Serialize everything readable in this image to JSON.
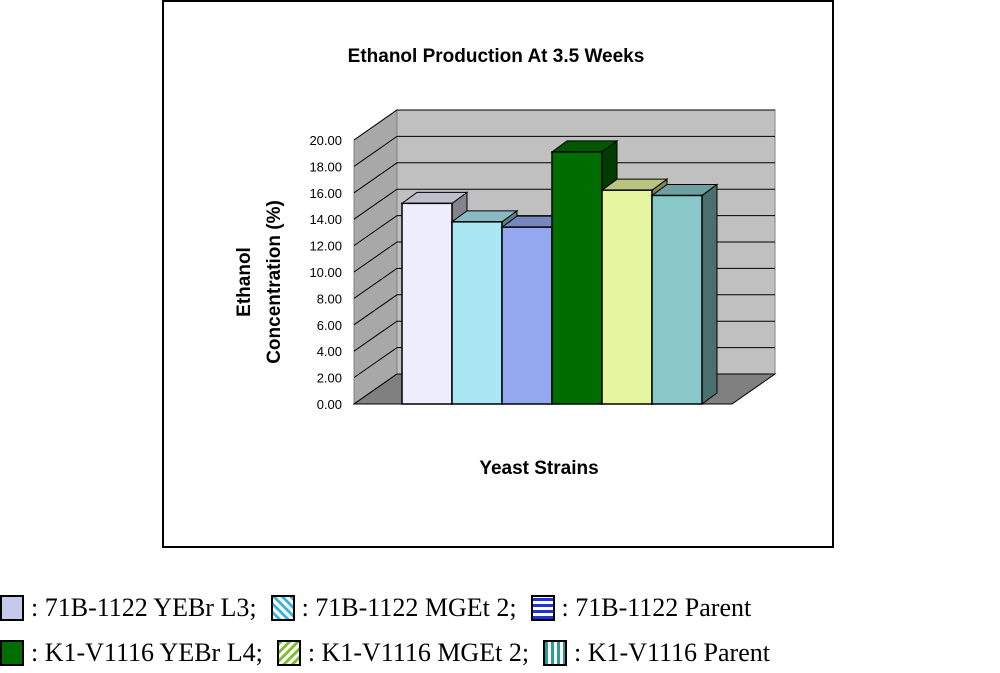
{
  "chart_data": {
    "type": "bar",
    "title": "Ethanol Production At 3.5 Weeks",
    "xlabel": "Yeast Strains",
    "ylabel_lines": [
      "Ethanol",
      "Concentration (%)"
    ],
    "ylim": [
      0,
      20
    ],
    "yticks": [
      "0.00",
      "2.00",
      "4.00",
      "6.00",
      "8.00",
      "10.00",
      "12.00",
      "14.00",
      "16.00",
      "18.00",
      "20.00"
    ],
    "categories": [
      "71B-1122 YEBr L3",
      "71B-1122 MGEt 2",
      "71B-1122 Parent",
      "K1-V1116 YEBr L4",
      "K1-V1116 MGEt 2",
      "K1-V1116 Parent"
    ],
    "values": [
      15.2,
      13.8,
      13.4,
      19.1,
      16.2,
      15.8
    ],
    "colors": [
      "#eeeefc",
      "#a9e8f2",
      "#93a8ee",
      "#006d00",
      "#e6f5a0",
      "#88c8c8"
    ],
    "grid": true
  },
  "legend": {
    "rows": [
      [
        {
          "label": ": 71B-1122 YEBr L3;",
          "color": "#c7c9ec"
        },
        {
          "label": ": 71B-1122 MGEt 2;",
          "color": "#5ac7e6"
        },
        {
          "label": ": 71B-1122 Parent",
          "color": "#1f33d6"
        }
      ],
      [
        {
          "label": ": K1-V1116 YEBr L4;",
          "color": "#006d00"
        },
        {
          "label": ": K1-V1116 MGEt 2;",
          "color": "#8fc43c"
        },
        {
          "label": ": K1-V1116 Parent",
          "color": "#3b9e9e"
        }
      ]
    ]
  }
}
